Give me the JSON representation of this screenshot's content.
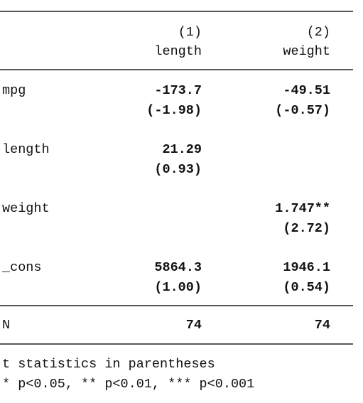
{
  "table": {
    "columns": [
      {
        "number": "(1)",
        "name": "length"
      },
      {
        "number": "(2)",
        "name": "weight"
      }
    ],
    "rows": [
      {
        "label": "mpg",
        "cells": [
          {
            "coef": "-173.7",
            "t": "(-1.98)"
          },
          {
            "coef": "-49.51",
            "t": "(-0.57)"
          }
        ]
      },
      {
        "label": "length",
        "cells": [
          {
            "coef": "21.29",
            "t": "(0.93)"
          },
          null
        ]
      },
      {
        "label": "weight",
        "cells": [
          null,
          {
            "coef": "1.747**",
            "t": "(2.72)"
          }
        ]
      },
      {
        "label": "_cons",
        "cells": [
          {
            "coef": "5864.3",
            "t": "(1.00)"
          },
          {
            "coef": "1946.1",
            "t": "(0.54)"
          }
        ]
      }
    ],
    "n_row": {
      "label": "N",
      "cells": [
        "74",
        "74"
      ]
    }
  },
  "notes": [
    "t statistics in parentheses",
    "* p<0.05, ** p<0.01, *** p<0.001"
  ]
}
